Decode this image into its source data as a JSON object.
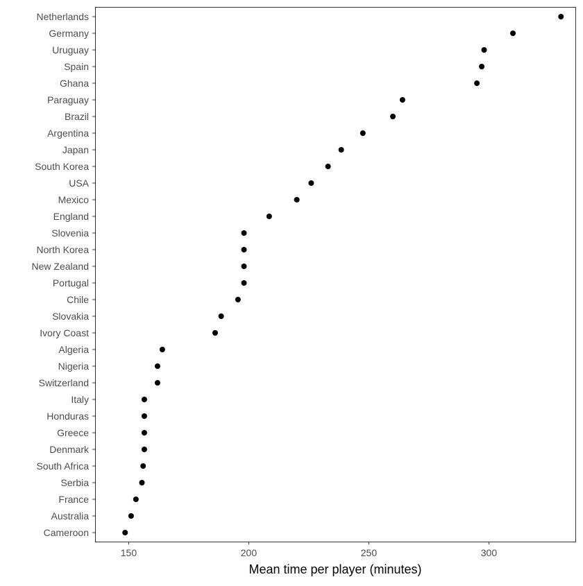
{
  "chart_data": {
    "type": "scatter",
    "title": "",
    "xlabel": "Mean time per player (minutes)",
    "ylabel": "",
    "xlim": [
      136,
      336
    ],
    "xticks": [
      150,
      200,
      250,
      300
    ],
    "grid": false,
    "legend": "none",
    "point_color": "#000000",
    "categories": [
      "Netherlands",
      "Germany",
      "Uruguay",
      "Spain",
      "Ghana",
      "Paraguay",
      "Brazil",
      "Argentina",
      "Japan",
      "South Korea",
      "USA",
      "Mexico",
      "England",
      "Slovenia",
      "North Korea",
      "New Zealand",
      "Portugal",
      "Chile",
      "Slovakia",
      "Ivory Coast",
      "Algeria",
      "Nigeria",
      "Switzerland",
      "Italy",
      "Honduras",
      "Greece",
      "Denmark",
      "South Africa",
      "Serbia",
      "France",
      "Australia",
      "Cameroon"
    ],
    "values": [
      330,
      310,
      298,
      297,
      295,
      264,
      260,
      247.5,
      238.5,
      233,
      226,
      220,
      208.5,
      198,
      198,
      198,
      198,
      195.5,
      188.5,
      186,
      164,
      162,
      162,
      156.5,
      156.5,
      156.5,
      156.5,
      156,
      155.5,
      153,
      151,
      148.5
    ]
  }
}
